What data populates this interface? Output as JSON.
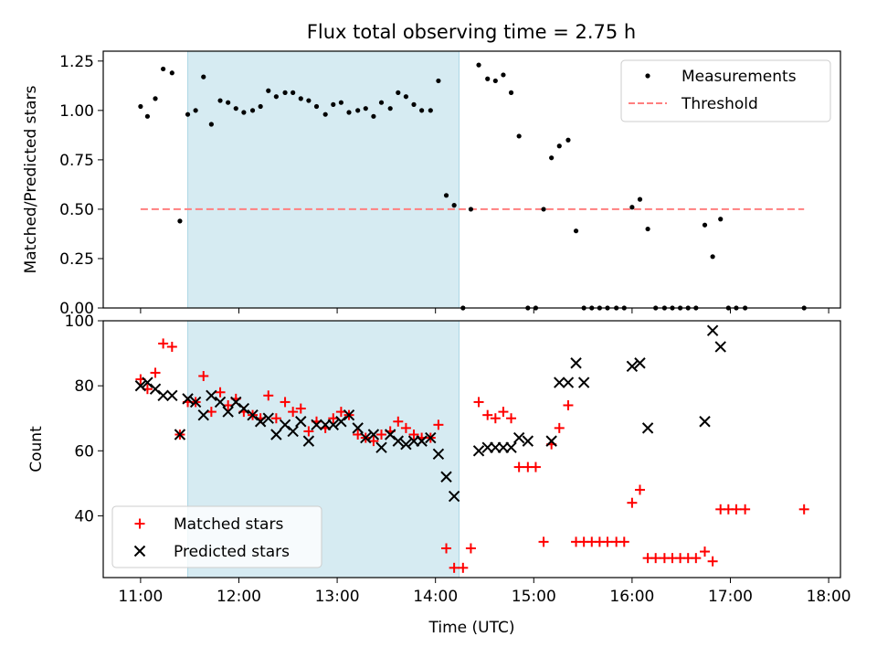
{
  "title": "Flux total observing time = 2.75 h",
  "shaded_region": {
    "start_hour": 11.48,
    "end_hour": 14.24,
    "color": "#add8e6"
  },
  "chart_data": [
    {
      "type": "scatter",
      "ylabel": "Matched/Predicted stars",
      "xlim": [
        10.62,
        18.12
      ],
      "ylim": [
        0,
        1.3
      ],
      "yticks": [
        0,
        0.25,
        0.5,
        0.75,
        1.0,
        1.25
      ],
      "ytick_labels": [
        "0.00",
        "0.25",
        "0.50",
        "0.75",
        "1.00",
        "1.25"
      ],
      "grid": false,
      "legend_position": "upper-right",
      "threshold": {
        "name": "Threshold",
        "y": 0.5,
        "x": [
          11.0,
          17.75
        ],
        "color": "#ff7f7f"
      },
      "series": [
        {
          "name": "Measurements",
          "color": "#000000",
          "x": [
            11.0,
            11.07,
            11.15,
            11.23,
            11.32,
            11.4,
            11.48,
            11.56,
            11.64,
            11.72,
            11.81,
            11.89,
            11.97,
            12.05,
            12.14,
            12.22,
            12.3,
            12.38,
            12.47,
            12.55,
            12.63,
            12.71,
            12.79,
            12.88,
            12.96,
            13.04,
            13.12,
            13.21,
            13.29,
            13.37,
            13.45,
            13.54,
            13.62,
            13.7,
            13.78,
            13.86,
            13.95,
            14.03,
            14.11,
            14.19,
            14.28,
            14.36,
            14.44,
            14.53,
            14.61,
            14.69,
            14.77,
            14.85,
            14.94,
            15.02,
            15.1,
            15.18,
            15.26,
            15.35,
            15.43,
            15.51,
            15.59,
            15.67,
            15.75,
            15.84,
            15.92,
            16.0,
            16.08,
            16.16,
            16.24,
            16.33,
            16.41,
            16.49,
            16.57,
            16.65,
            16.74,
            16.82,
            16.9,
            16.98,
            17.06,
            17.15,
            17.75
          ],
          "y": [
            1.02,
            0.97,
            1.06,
            1.21,
            1.19,
            0.44,
            0.98,
            1.0,
            1.17,
            0.93,
            1.05,
            1.04,
            1.01,
            0.99,
            1.0,
            1.02,
            1.1,
            1.07,
            1.09,
            1.09,
            1.06,
            1.05,
            1.02,
            0.98,
            1.03,
            1.04,
            0.99,
            1.0,
            1.01,
            0.97,
            1.04,
            1.01,
            1.09,
            1.07,
            1.03,
            1.0,
            1.0,
            1.15,
            0.57,
            0.52,
            0.0,
            0.5,
            1.23,
            1.16,
            1.15,
            1.18,
            1.09,
            0.87,
            0.0,
            0.0,
            0.5,
            0.76,
            0.82,
            0.85,
            0.39,
            0.0,
            0.0,
            0.0,
            0.0,
            0.0,
            0.0,
            0.51,
            0.55,
            0.4,
            0.0,
            0.0,
            0.0,
            0.0,
            0.0,
            0.0,
            0.42,
            0.26,
            0.45,
            0.0,
            0.0,
            0.0,
            0.0
          ]
        }
      ]
    },
    {
      "type": "scatter",
      "xlabel": "Time (UTC)",
      "ylabel": "Count",
      "xlim": [
        10.62,
        18.12
      ],
      "ylim": [
        21,
        100
      ],
      "yticks": [
        40,
        60,
        80,
        100
      ],
      "xticks": [
        11,
        12,
        13,
        14,
        15,
        16,
        17,
        18
      ],
      "xtick_labels": [
        "11:00",
        "12:00",
        "13:00",
        "14:00",
        "15:00",
        "16:00",
        "17:00",
        "18:00"
      ],
      "grid": false,
      "legend_position": "lower-left",
      "series": [
        {
          "name": "Matched stars",
          "marker": "plus",
          "color": "#ff0000",
          "x": [
            11.0,
            11.07,
            11.15,
            11.23,
            11.32,
            11.4,
            11.48,
            11.56,
            11.64,
            11.72,
            11.81,
            11.89,
            11.97,
            12.05,
            12.14,
            12.22,
            12.3,
            12.38,
            12.47,
            12.55,
            12.63,
            12.71,
            12.79,
            12.88,
            12.96,
            13.04,
            13.12,
            13.21,
            13.29,
            13.37,
            13.45,
            13.54,
            13.62,
            13.7,
            13.78,
            13.86,
            13.95,
            14.03,
            14.11,
            14.19,
            14.28,
            14.36,
            14.44,
            14.53,
            14.61,
            14.69,
            14.77,
            14.85,
            14.94,
            15.02,
            15.1,
            15.18,
            15.26,
            15.35,
            15.43,
            15.51,
            15.59,
            15.67,
            15.75,
            15.84,
            15.92,
            16.0,
            16.08,
            16.16,
            16.24,
            16.33,
            16.41,
            16.49,
            16.57,
            16.65,
            16.74,
            16.82,
            16.9,
            16.98,
            17.06,
            17.15,
            17.75
          ],
          "y": [
            82,
            79,
            84,
            93,
            92,
            65,
            75,
            75,
            83,
            72,
            78,
            74,
            76,
            72,
            71,
            70,
            77,
            70,
            75,
            72,
            73,
            66,
            69,
            67,
            70,
            72,
            71,
            65,
            64,
            63,
            65,
            66,
            69,
            67,
            65,
            64,
            64,
            68,
            30,
            24,
            24,
            30,
            75,
            71,
            70,
            72,
            70,
            55,
            55,
            55,
            32,
            62,
            67,
            74,
            32,
            32,
            32,
            32,
            32,
            32,
            32,
            44,
            48,
            27,
            27,
            27,
            27,
            27,
            27,
            27,
            29,
            26,
            42,
            42,
            42,
            42,
            42
          ]
        },
        {
          "name": "Predicted stars",
          "marker": "x",
          "color": "#000000",
          "x": [
            11.0,
            11.07,
            11.15,
            11.23,
            11.32,
            11.4,
            11.48,
            11.56,
            11.64,
            11.72,
            11.81,
            11.89,
            11.97,
            12.05,
            12.14,
            12.22,
            12.3,
            12.38,
            12.47,
            12.55,
            12.63,
            12.71,
            12.79,
            12.88,
            12.96,
            13.04,
            13.12,
            13.21,
            13.29,
            13.37,
            13.45,
            13.54,
            13.62,
            13.7,
            13.78,
            13.86,
            13.95,
            14.03,
            14.11,
            14.19,
            14.44,
            14.53,
            14.61,
            14.69,
            14.77,
            14.85,
            14.94,
            15.18,
            15.26,
            15.35,
            15.43,
            15.51,
            16.0,
            16.08,
            16.16,
            16.74,
            16.82,
            16.9
          ],
          "y": [
            80,
            81,
            79,
            77,
            77,
            65,
            76,
            75,
            71,
            77,
            75,
            72,
            75,
            73,
            71,
            69,
            70,
            65,
            68,
            66,
            69,
            63,
            68,
            68,
            68,
            69,
            71,
            67,
            64,
            65,
            61,
            65,
            63,
            62,
            63,
            63,
            64,
            59,
            52,
            46,
            60,
            61,
            61,
            61,
            61,
            64,
            63,
            63,
            81,
            81,
            87,
            81,
            86,
            87,
            67,
            69,
            97,
            92
          ]
        }
      ]
    }
  ]
}
